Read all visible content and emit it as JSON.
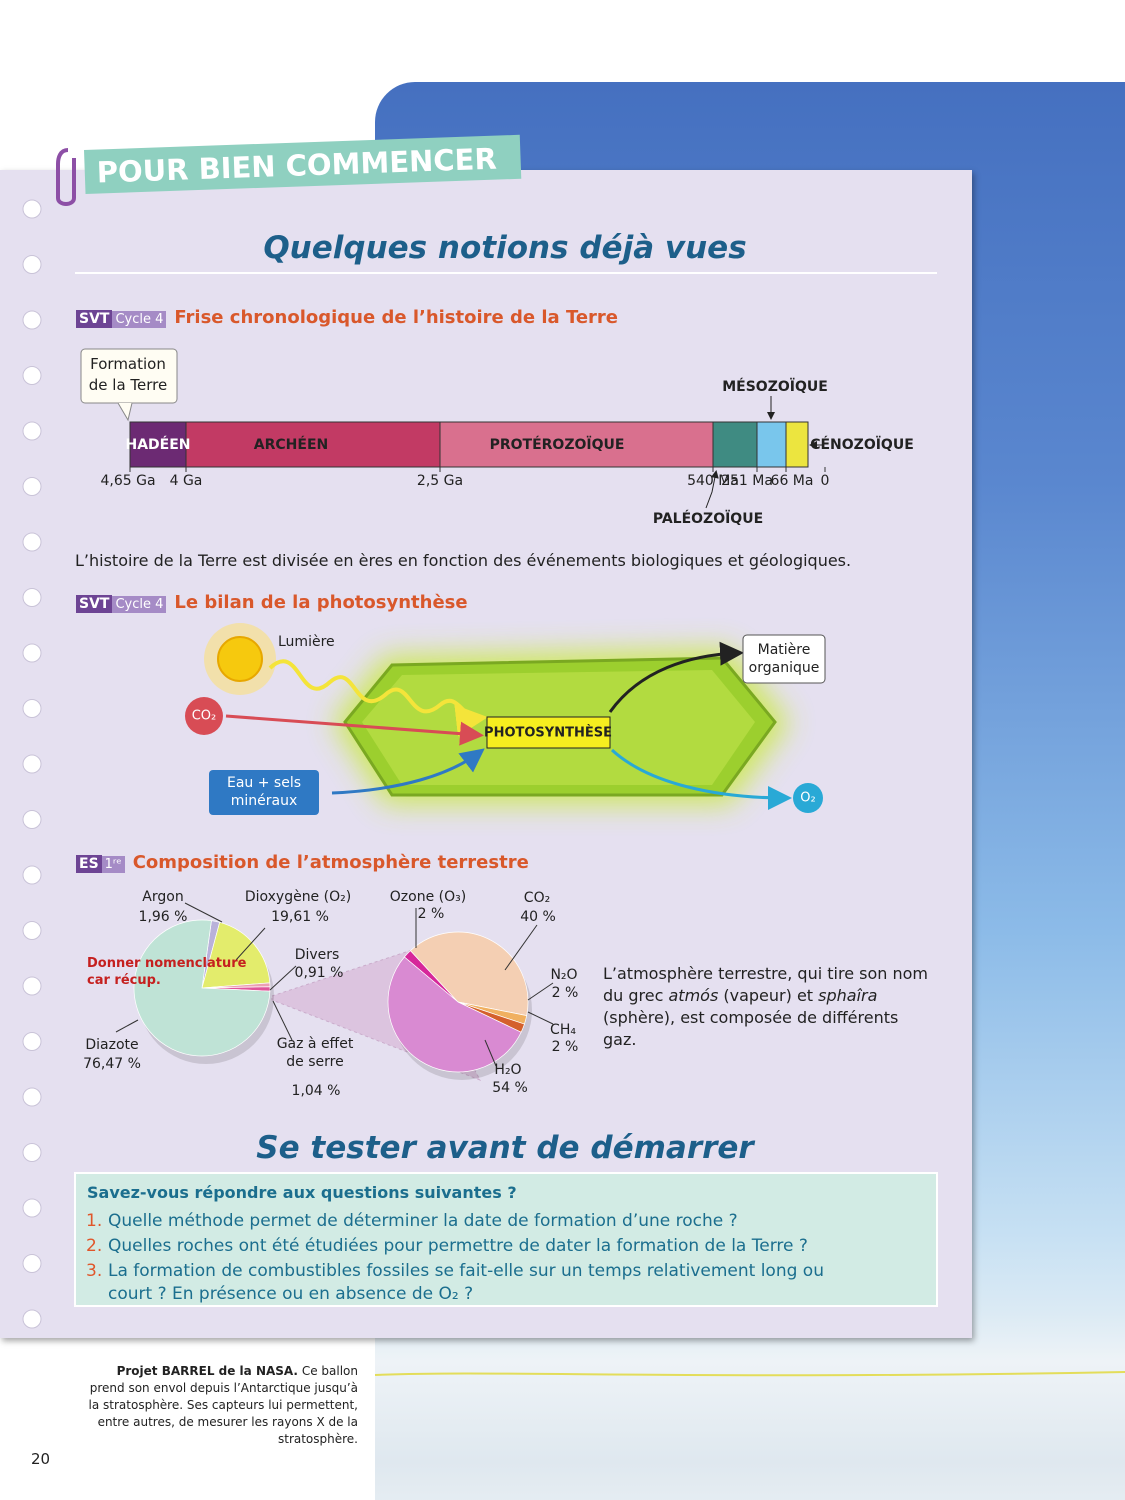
{
  "header": {
    "banner": "POUR BIEN COMMENCER",
    "title": "Quelques notions déjà vues"
  },
  "timeline": {
    "tag": "SVT",
    "tag_sub": "Cycle 4",
    "title": "Frise chronologique de l’histoire de la Terre",
    "start_label": "Formation de la Terre",
    "eras": [
      {
        "label": "HADÉEN",
        "color": "#6c2a73"
      },
      {
        "label": "ARCHÉEN",
        "color": "#c23a64"
      },
      {
        "label": "PROTÉROZOÏQUE",
        "color": "#d9708e"
      },
      {
        "label": "PALÉOZOÏQUE",
        "color": "#3f8b82"
      },
      {
        "label": "MÉSOZOÏQUE",
        "color": "#79c6ec"
      },
      {
        "label": "CÉNOZOÏQUE",
        "color": "#ece53f"
      }
    ],
    "ticks": [
      "4,65 Ga",
      "4 Ga",
      "2,5 Ga",
      "540 Ma",
      "251 Ma",
      "66 Ma",
      "0"
    ],
    "caption": "L’histoire de la Terre est divisée en ères en fonction des événements biologiques et géologiques."
  },
  "photosynthesis": {
    "tag": "SVT",
    "tag_sub": "Cycle 4",
    "title": "Le bilan de la photosynthèse",
    "light": "Lumière",
    "co2": "CO₂",
    "process": "PHOTOSYNTHÈSE",
    "product": "Matière organique",
    "water": "Eau + sels minéraux",
    "o2": "O₂"
  },
  "atmosphere": {
    "tag": "ES",
    "tag_sub": "1ʳᵉ",
    "title": "Composition de l’atmosphère terrestre",
    "note": "Donner nomenclature car récup.",
    "pies": [
      {
        "type": "pie",
        "categories": [
          "Argon",
          "Dioxygène (O₂)",
          "Divers",
          "Gaz à effet de serre",
          "Diazote"
        ],
        "values": [
          1.96,
          19.61,
          0.91,
          1.04,
          76.47
        ],
        "value_labels": [
          "1,96 %",
          "19,61 %",
          "0,91 %",
          "1,04 %",
          "76,47 %"
        ],
        "colors": [
          "#b9b1da",
          "#e3ec6c",
          "#eba0b4",
          "#e0559a",
          "#bfe3d6"
        ]
      },
      {
        "type": "pie",
        "categories": [
          "Ozone (O₃)",
          "CO₂",
          "N₂O",
          "CH₄",
          "H₂O"
        ],
        "values": [
          2,
          40,
          2,
          2,
          54
        ],
        "value_labels": [
          "2 %",
          "40 %",
          "2 %",
          "2 %",
          "54 %"
        ],
        "colors": [
          "#d6279a",
          "#f4cfb3",
          "#f0b060",
          "#d4602c",
          "#d98ad2"
        ]
      }
    ],
    "text_parts": [
      "L’atmosphère terrestre, qui tire son nom du grec ",
      "atmós",
      " (vapeur) et ",
      "sphaîra",
      " (sphère), est composée de différents gaz."
    ]
  },
  "quiz": {
    "title": "Se tester avant de démarrer",
    "intro": "Savez-vous répondre aux questions suivantes ?",
    "questions": [
      {
        "number": "1.",
        "text": "Quelle méthode permet de déterminer la date de formation d’une roche ?"
      },
      {
        "number": "2.",
        "text": "Quelles roches ont été étudiées pour permettre de dater la formation de la Terre ?"
      },
      {
        "number": "3.",
        "text": "La formation de combustibles fossiles se fait-elle sur un temps relativement long ou court ? En présence ou en absence de O₂ ?"
      }
    ]
  },
  "photo_caption": {
    "bold": "Projet BARREL de la NASA.",
    "text": "Ce ballon prend son envol depuis l’Antarctique jusqu’à la stratosphère. Ses capteurs lui permettent, entre autres, de mesurer les rayons X de la stratosphère."
  },
  "page_number": "20"
}
